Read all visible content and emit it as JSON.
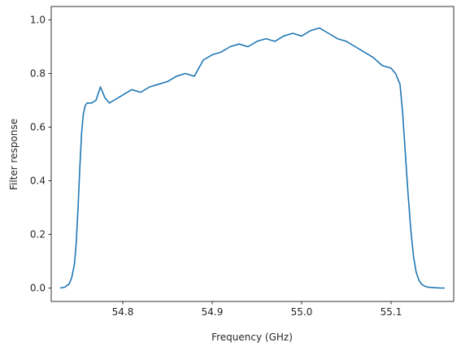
{
  "chart_data": {
    "type": "line",
    "title": "",
    "xlabel": "Frequency (GHz)",
    "ylabel": "Filter response",
    "xlim": [
      54.72,
      55.17
    ],
    "ylim": [
      -0.05,
      1.05
    ],
    "x_ticks": [
      54.8,
      54.9,
      55.0,
      55.1
    ],
    "x_tick_labels": [
      "54.8",
      "54.9",
      "55.0",
      "55.1"
    ],
    "y_ticks": [
      0.0,
      0.2,
      0.4,
      0.6,
      0.8,
      1.0
    ],
    "y_tick_labels": [
      "0.0",
      "0.2",
      "0.4",
      "0.6",
      "0.8",
      "1.0"
    ],
    "grid": false,
    "legend": "none",
    "series": [
      {
        "color": "#1f77b4",
        "x": [
          54.73,
          54.735,
          54.74,
          54.743,
          54.746,
          54.748,
          54.75,
          54.752,
          54.754,
          54.756,
          54.758,
          54.76,
          54.765,
          54.77,
          54.775,
          54.78,
          54.785,
          54.79,
          54.8,
          54.81,
          54.82,
          54.83,
          54.84,
          54.85,
          54.86,
          54.87,
          54.88,
          54.89,
          54.9,
          54.91,
          54.92,
          54.93,
          54.94,
          54.95,
          54.96,
          54.97,
          54.98,
          54.99,
          55.0,
          55.01,
          55.02,
          55.03,
          55.04,
          55.05,
          55.06,
          55.07,
          55.08,
          55.09,
          55.1,
          55.105,
          55.11,
          55.113,
          55.116,
          55.119,
          55.122,
          55.125,
          55.128,
          55.131,
          55.134,
          55.137,
          55.14,
          55.145,
          55.15,
          55.155,
          55.16
        ],
        "y": [
          0.0,
          0.003,
          0.015,
          0.04,
          0.09,
          0.17,
          0.3,
          0.45,
          0.58,
          0.65,
          0.68,
          0.69,
          0.69,
          0.7,
          0.75,
          0.71,
          0.69,
          0.7,
          0.72,
          0.74,
          0.73,
          0.75,
          0.76,
          0.77,
          0.79,
          0.8,
          0.79,
          0.85,
          0.87,
          0.88,
          0.9,
          0.91,
          0.9,
          0.92,
          0.93,
          0.92,
          0.94,
          0.95,
          0.94,
          0.96,
          0.97,
          0.95,
          0.93,
          0.92,
          0.9,
          0.88,
          0.86,
          0.83,
          0.82,
          0.8,
          0.76,
          0.65,
          0.5,
          0.35,
          0.22,
          0.12,
          0.06,
          0.03,
          0.015,
          0.008,
          0.004,
          0.002,
          0.001,
          0.0,
          0.0
        ]
      }
    ]
  }
}
